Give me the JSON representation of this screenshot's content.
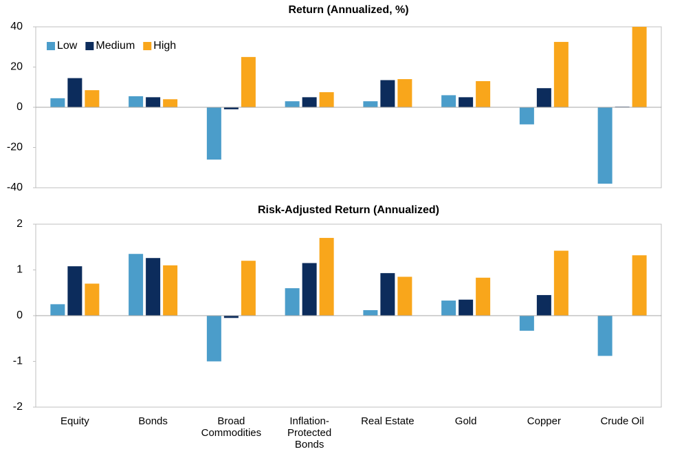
{
  "chart_data": [
    {
      "type": "bar",
      "title": "Return (Annualized, %)",
      "series": [
        {
          "name": "Low",
          "color": "#4b9dca",
          "values": [
            4.5,
            5.5,
            -26,
            3,
            3,
            6,
            -8.5,
            -38
          ]
        },
        {
          "name": "Medium",
          "color": "#0c2c5c",
          "values": [
            14.5,
            5,
            -1,
            5,
            13.5,
            5,
            9.5,
            0.3
          ]
        },
        {
          "name": "High",
          "color": "#f9a61b",
          "values": [
            8.5,
            4,
            25,
            7.5,
            14,
            13,
            32.5,
            40
          ]
        }
      ],
      "ylim": [
        -40,
        40
      ],
      "yticks": [
        -40,
        -20,
        0,
        20,
        40
      ],
      "legend": "upper left"
    },
    {
      "type": "bar",
      "title": "Risk-Adjusted Return (Annualized)",
      "categories": [
        "Equity",
        "Bonds",
        "Broad Commodities",
        "Inflation-Protected Bonds",
        "Real Estate",
        "Gold",
        "Copper",
        "Crude Oil"
      ],
      "series": [
        {
          "color": "#4b9dca",
          "values": [
            0.25,
            1.35,
            -1.0,
            0.6,
            0.12,
            0.33,
            -0.33,
            -0.88
          ]
        },
        {
          "color": "#0c2c5c",
          "values": [
            1.08,
            1.26,
            -0.05,
            1.15,
            0.93,
            0.35,
            0.45,
            0
          ]
        },
        {
          "color": "#f9a61b",
          "values": [
            0.7,
            1.1,
            1.2,
            1.7,
            0.85,
            0.83,
            1.42,
            1.32
          ]
        }
      ],
      "ylim": [
        -2,
        2
      ],
      "yticks": [
        -2,
        -1,
        0,
        1,
        2
      ]
    }
  ]
}
